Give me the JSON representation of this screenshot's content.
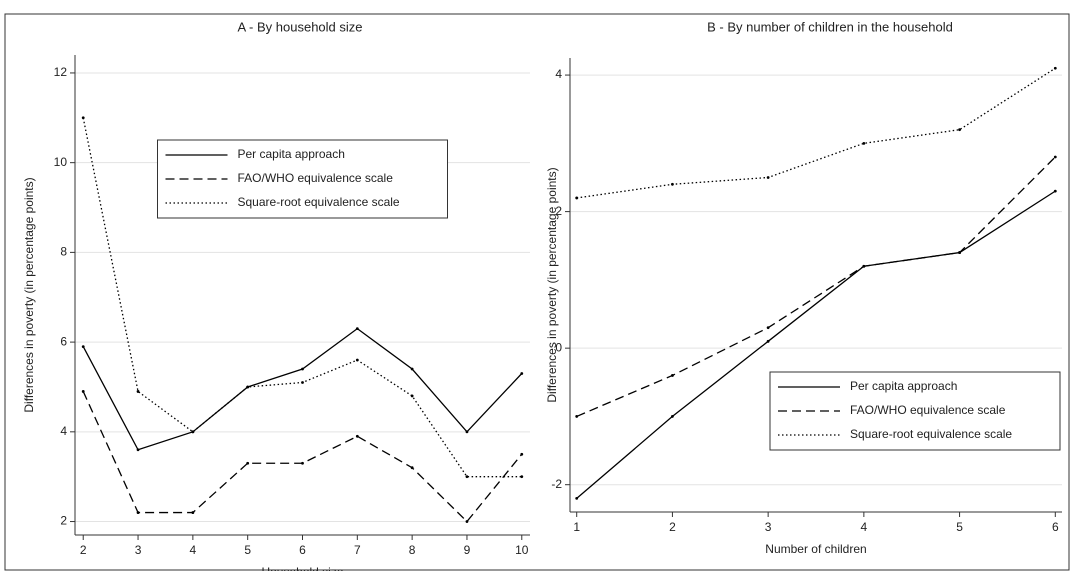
{
  "chart_data": [
    {
      "type": "line",
      "title": "A - By household size",
      "x_label": "Household size",
      "y_label": "Differences in poverty (in percentage points)",
      "x": [
        2,
        3,
        4,
        5,
        6,
        7,
        8,
        9,
        10
      ],
      "xlim": [
        1.85,
        10.15
      ],
      "xticks": [
        2,
        3,
        4,
        5,
        6,
        7,
        8,
        9,
        10
      ],
      "ylim": [
        1.7,
        12.4
      ],
      "yticks": [
        2,
        4,
        6,
        8,
        10,
        12
      ],
      "grid": true,
      "legend": "upper center",
      "series": [
        {
          "name": "Per capita approach",
          "color": "#000000",
          "style": "solid",
          "values": [
            5.9,
            3.6,
            4.0,
            5.0,
            5.4,
            6.3,
            5.4,
            4.0,
            5.3
          ]
        },
        {
          "name": "FAO/WHO equivalence scale",
          "color": "#000000",
          "style": "dashed",
          "values": [
            4.9,
            2.2,
            2.2,
            3.3,
            3.3,
            3.9,
            3.2,
            2.0,
            3.5
          ]
        },
        {
          "name": "Square-root equivalence scale",
          "color": "#000000",
          "style": "dotted",
          "values": [
            11.0,
            4.9,
            4.0,
            5.0,
            5.1,
            5.6,
            4.8,
            3.0,
            3.0
          ]
        }
      ]
    },
    {
      "type": "line",
      "title": "B - By number of children in the household",
      "x_label": "Number of children",
      "y_label": "Differences in poverty (in percentage points)",
      "x": [
        1,
        2,
        3,
        4,
        5,
        6
      ],
      "xlim": [
        0.93,
        6.07
      ],
      "xticks": [
        1,
        2,
        3,
        4,
        5,
        6
      ],
      "ylim": [
        -2.4,
        4.25
      ],
      "yticks": [
        -2,
        0,
        2,
        4
      ],
      "grid": true,
      "legend": "lower right",
      "series": [
        {
          "name": "Per capita approach",
          "color": "#000000",
          "style": "solid",
          "values": [
            -2.2,
            -1.0,
            0.1,
            1.2,
            1.4,
            2.3
          ]
        },
        {
          "name": "FAO/WHO equivalence scale",
          "color": "#000000",
          "style": "dashed",
          "values": [
            -1.0,
            -0.4,
            0.3,
            1.2,
            1.4,
            2.8
          ]
        },
        {
          "name": "Square-root equivalence scale",
          "color": "#000000",
          "style": "dotted",
          "values": [
            2.2,
            2.4,
            2.5,
            3.0,
            3.2,
            4.1
          ]
        }
      ]
    }
  ]
}
